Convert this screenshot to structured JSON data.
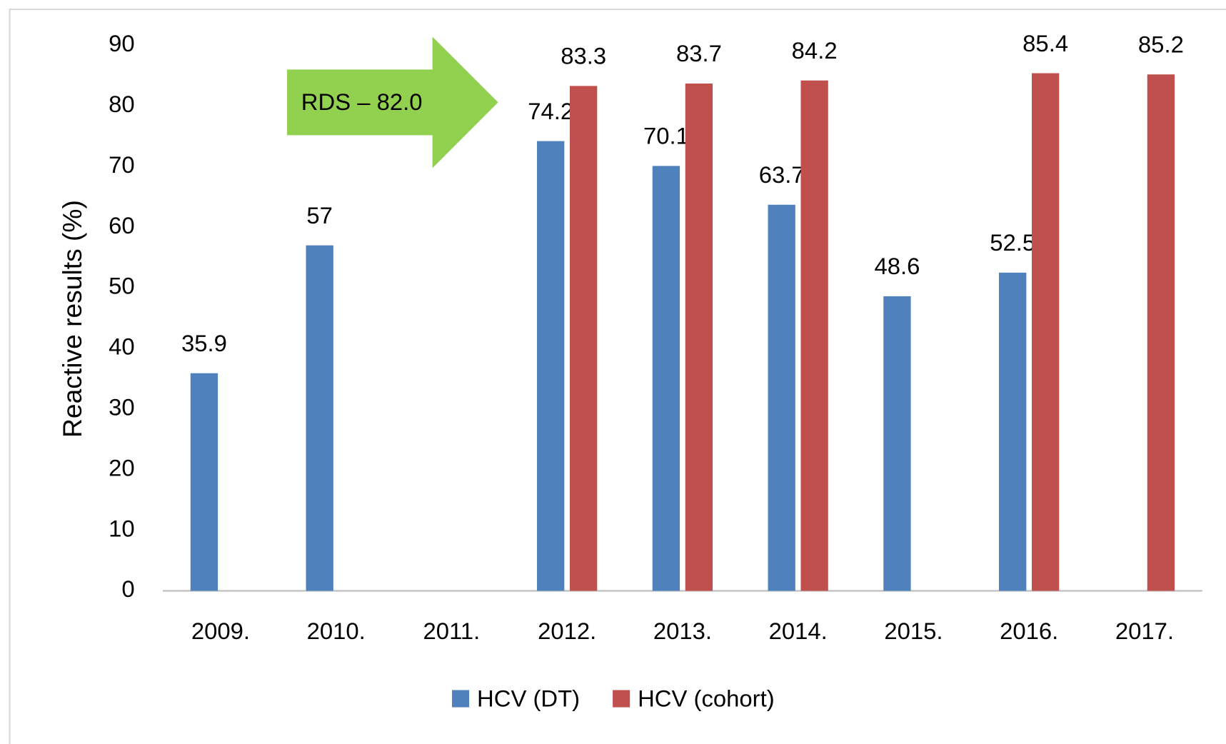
{
  "chart_data": {
    "type": "bar",
    "y_label": "Reactive results (%)",
    "categories": [
      "2009.",
      "2010.",
      "2011.",
      "2012.",
      "2013.",
      "2014.",
      "2015.",
      "2016.",
      "2017."
    ],
    "series": [
      {
        "name": "HCV (DT)",
        "color": "#4f81bd",
        "values": [
          35.9,
          57,
          null,
          74.2,
          70.1,
          63.7,
          48.6,
          52.5,
          null
        ]
      },
      {
        "name": "HCV (cohort)",
        "color": "#c0504d",
        "values": [
          null,
          null,
          null,
          83.3,
          83.7,
          84.2,
          null,
          85.4,
          85.2
        ]
      }
    ],
    "annotation": "RDS – 82.0",
    "annotation_color": "#92d050",
    "ylim": [
      0,
      90
    ],
    "yticks": [
      0,
      10,
      20,
      30,
      40,
      50,
      60,
      70,
      80,
      90
    ],
    "grid": false,
    "legend": "bottom"
  }
}
